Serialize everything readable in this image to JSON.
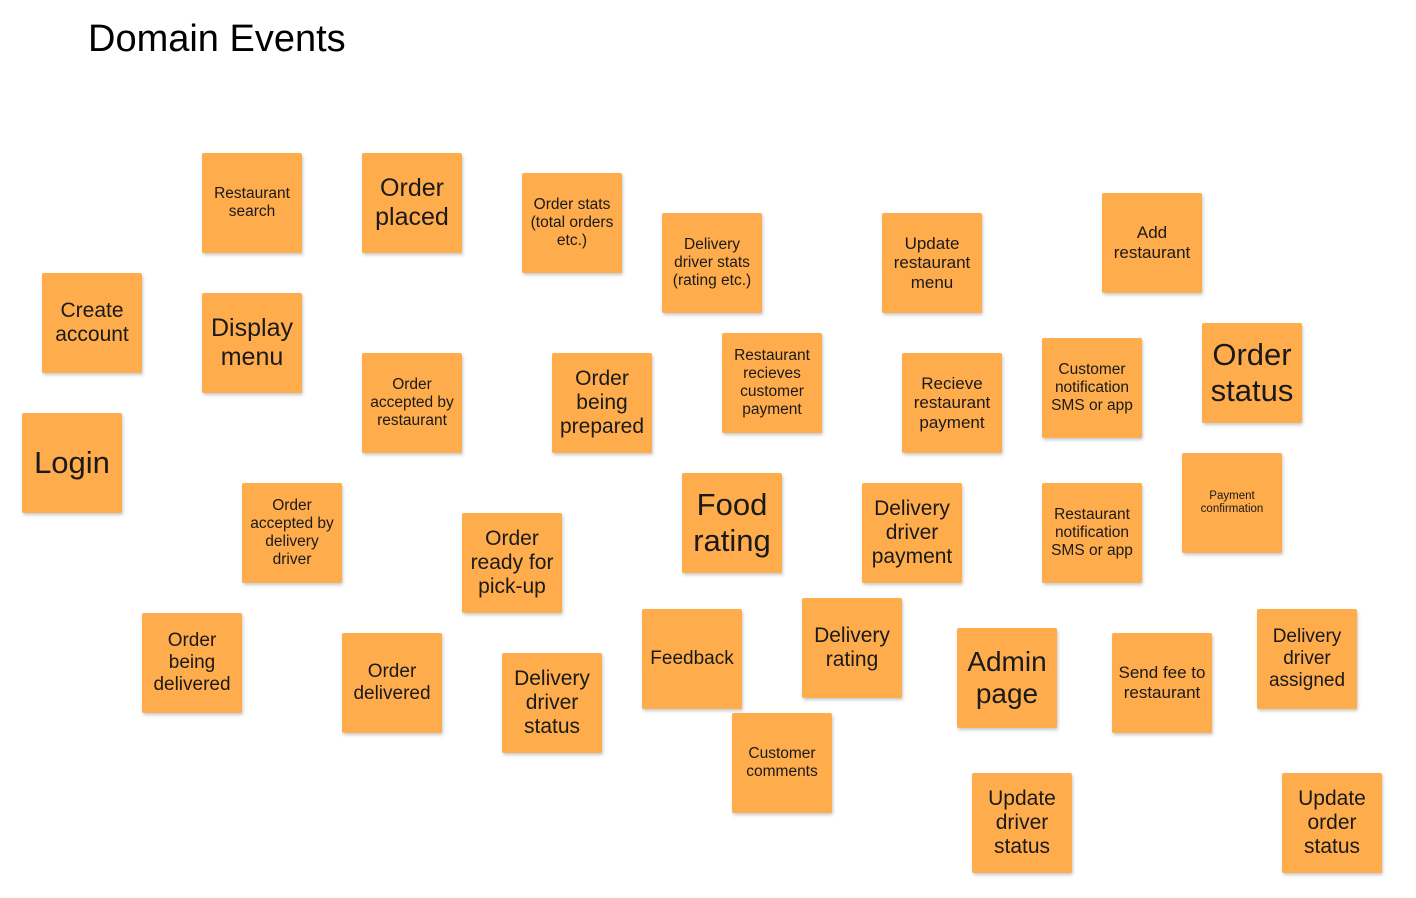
{
  "board": {
    "title": "Domain Events",
    "note_color": "#ffac4d",
    "notes": {
      "restaurant_search": "Restaurant search",
      "order_placed": "Order placed",
      "order_stats": "Order stats (total orders etc.)",
      "delivery_driver_stats": "Delivery driver stats (rating etc.)",
      "update_restaurant_menu": "Update restaurant menu",
      "add_restaurant": "Add restaurant",
      "create_account": "Create account",
      "display_menu": "Display menu",
      "order_accepted_by_restaurant": "Order accepted by restaurant",
      "order_being_prepared": "Order being prepared",
      "restaurant_recieves_customer_payment": "Restaurant recieves customer payment",
      "recieve_restaurant_payment": "Recieve restaurant payment",
      "customer_notification": "Customer notification SMS or app",
      "order_status": "Order status",
      "login": "Login",
      "order_accepted_by_delivery_driver": "Order accepted by delivery driver",
      "order_ready_for_pickup": "Order ready for pick-up",
      "food_rating": "Food rating",
      "delivery_driver_payment": "Delivery driver payment",
      "restaurant_notification": "Restaurant notification SMS or app",
      "payment_confirmation": "Payment confirmation",
      "order_being_delivered": "Order being delivered",
      "order_delivered": "Order delivered",
      "delivery_driver_status": "Delivery driver status",
      "feedback": "Feedback",
      "delivery_rating": "Delivery rating",
      "admin_page": "Admin page",
      "send_fee_to_restaurant": "Send fee to restaurant",
      "delivery_driver_assigned": "Delivery driver assigned",
      "customer_comments": "Customer comments",
      "update_driver_status": "Update driver status",
      "update_order_status": "Update order status"
    }
  }
}
